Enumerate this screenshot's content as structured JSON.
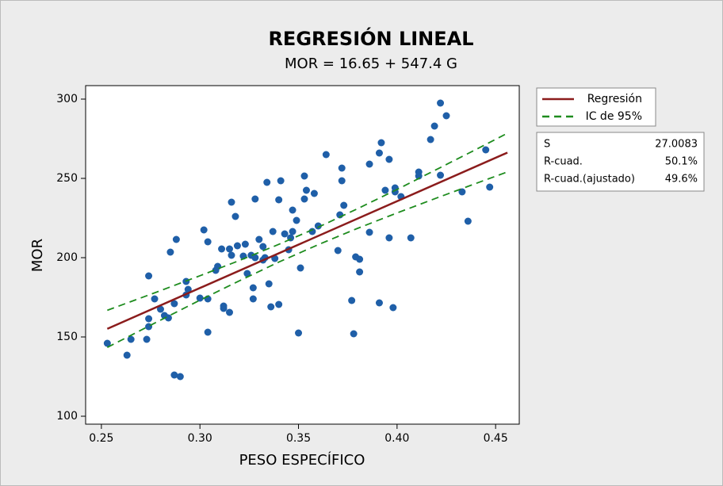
{
  "chart_data": {
    "type": "scatter",
    "title": "REGRESIÓN LINEAL",
    "subtitle": "MOR = 16.65 + 547.4 G",
    "x_label": "PESO ESPECÍFICO",
    "y_label": "MOR",
    "color": "#1f5fa8",
    "x": [
      0.253,
      0.263,
      0.265,
      0.274,
      0.274,
      0.274,
      0.273,
      0.277,
      0.28,
      0.282,
      0.284,
      0.285,
      0.287,
      0.288,
      0.287,
      0.29,
      0.293,
      0.294,
      0.293,
      0.3,
      0.302,
      0.304,
      0.304,
      0.304,
      0.308,
      0.309,
      0.311,
      0.312,
      0.312,
      0.315,
      0.315,
      0.316,
      0.316,
      0.318,
      0.319,
      0.322,
      0.323,
      0.324,
      0.326,
      0.327,
      0.327,
      0.328,
      0.328,
      0.33,
      0.332,
      0.332,
      0.333,
      0.334,
      0.335,
      0.336,
      0.337,
      0.338,
      0.34,
      0.34,
      0.341,
      0.343,
      0.345,
      0.346,
      0.347,
      0.347,
      0.349,
      0.35,
      0.351,
      0.353,
      0.353,
      0.354,
      0.357,
      0.358,
      0.36,
      0.364,
      0.37,
      0.371,
      0.372,
      0.372,
      0.373,
      0.377,
      0.378,
      0.379,
      0.381,
      0.381,
      0.386,
      0.386,
      0.391,
      0.391,
      0.392,
      0.394,
      0.396,
      0.396,
      0.398,
      0.399,
      0.399,
      0.402,
      0.407,
      0.411,
      0.411,
      0.417,
      0.419,
      0.422,
      0.422,
      0.425,
      0.433,
      0.436,
      0.445,
      0.447
    ],
    "values": [
      146,
      138.5,
      148.5,
      188.5,
      161.5,
      156.5,
      148.5,
      174,
      167.5,
      163.5,
      162,
      203.5,
      171,
      211.5,
      126,
      125,
      185,
      180,
      176.5,
      174.5,
      217.5,
      210,
      174,
      153,
      192,
      194.5,
      205.5,
      169.5,
      168,
      165.5,
      205.5,
      201.5,
      235,
      226,
      207.5,
      201,
      208.5,
      190,
      201.5,
      181,
      174,
      237,
      200,
      211.5,
      207,
      198.5,
      200,
      247.5,
      183.5,
      169,
      216.5,
      199.5,
      236.5,
      170.5,
      248.5,
      215,
      205,
      212.5,
      216.5,
      230,
      223.5,
      152.5,
      193.5,
      237,
      251.5,
      242.5,
      216.5,
      240.5,
      220,
      265,
      204.5,
      227,
      248.5,
      256.5,
      233,
      173,
      152,
      200.5,
      199,
      191,
      216,
      259,
      266,
      171.5,
      272.5,
      242.5,
      262,
      212.5,
      168.5,
      244,
      241.5,
      238.5,
      212.5,
      254,
      251.5,
      274.5,
      283,
      297.5,
      252,
      289.5,
      241.5,
      223,
      268,
      244.5
    ],
    "lines": [
      {
        "name": "Regresión",
        "color": "#8b1c1c",
        "style": "solid",
        "x": [
          0.253,
          0.456
        ],
        "values": [
          155.14,
          266.26
        ]
      },
      {
        "name": "IC de 95%",
        "color": "#1e8c1e",
        "style": "dashed",
        "x": [
          0.253,
          0.28,
          0.3,
          0.32,
          0.34,
          0.36,
          0.38,
          0.4,
          0.42,
          0.44,
          0.456
        ],
        "upper": [
          166.8,
          179.2,
          188.6,
          198.2,
          208.4,
          219.2,
          230.9,
          243.0,
          255.6,
          268.2,
          278.5
        ],
        "lower": [
          143.4,
          160.6,
          173.2,
          185.4,
          197.2,
          208.2,
          218.5,
          228.2,
          237.6,
          246.8,
          254.1
        ]
      }
    ],
    "stats": [
      [
        "S",
        "27.0083"
      ],
      [
        "R-cuad.",
        "50.1%"
      ],
      [
        "R-cuad.(ajustado)",
        "49.6%"
      ]
    ],
    "xlim": [
      0.242,
      0.462
    ],
    "xticks": [
      0.25,
      {
        "value": 0.3,
        "label": "0.30"
      },
      0.35,
      {
        "value": 0.4,
        "label": "0.40"
      },
      0.45
    ],
    "ylim": [
      95,
      308.5
    ],
    "yticks": [
      100,
      150,
      200,
      250,
      300
    ],
    "grid": false
  }
}
